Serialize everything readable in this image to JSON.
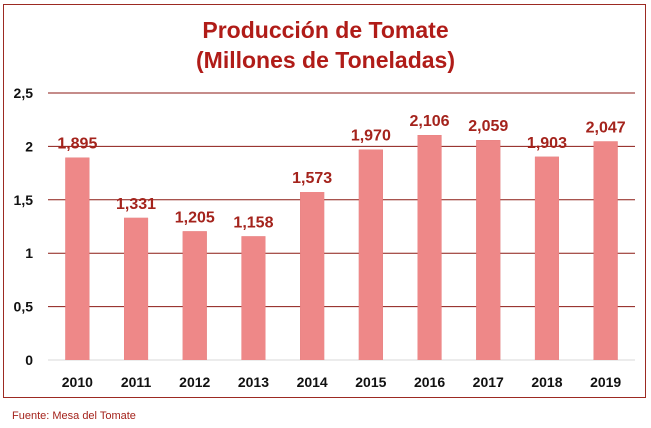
{
  "chart_data": {
    "type": "bar",
    "title": "Producción de Tomate",
    "subtitle": "(Millones de Toneladas)",
    "categories": [
      "2010",
      "2011",
      "2012",
      "2013",
      "2014",
      "2015",
      "2016",
      "2017",
      "2018",
      "2019"
    ],
    "values": [
      1.895,
      1.331,
      1.205,
      1.158,
      1.573,
      1.97,
      2.106,
      2.059,
      1.903,
      2.047
    ],
    "data_labels": [
      "1,895",
      "1,331",
      "1,205",
      "1,158",
      "1,573",
      "1,970",
      "2,106",
      "2,059",
      "1,903",
      "2,047"
    ],
    "xlabel": "",
    "ylabel": "",
    "ylim": [
      0,
      2.5
    ],
    "yticks": [
      "0",
      "0,5",
      "1",
      "1,5",
      "2",
      "2,5"
    ],
    "grid": true,
    "legend": "none",
    "colors": {
      "bar": "#c0160f",
      "label": "#a4231c",
      "grid": "#8b1a14",
      "frame": "#9c2a22"
    }
  },
  "source": "Fuente: Mesa del Tomate"
}
